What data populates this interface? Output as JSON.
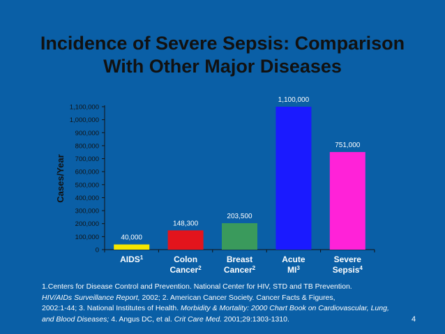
{
  "slide": {
    "title_line1": "Incidence of Severe Sepsis: Comparison",
    "title_line2": "With Other Major Diseases",
    "page_number": "4"
  },
  "colors": {
    "background": "#0a5fa6",
    "title": "#111111",
    "axis_text": "#111111",
    "label_text": "#ffffff"
  },
  "chart_data": {
    "type": "bar",
    "title": "Incidence of Severe Sepsis: Comparison With Other Major Diseases",
    "xlabel": "",
    "ylabel": "Cases/Year",
    "ylim": [
      0,
      1100000
    ],
    "ytick_values": [
      0,
      100000,
      200000,
      300000,
      400000,
      500000,
      600000,
      700000,
      800000,
      900000,
      1000000,
      1100000
    ],
    "ytick_labels": [
      "0",
      "100,000",
      "200,000",
      "300,000",
      "400,000",
      "500,000",
      "600,000",
      "700,000",
      "800,000",
      "900,000",
      "1,000,000",
      "1,100,000"
    ],
    "categories": [
      {
        "line1": "AIDS",
        "sup1": "1",
        "line2": "",
        "sup2": ""
      },
      {
        "line1": "Colon",
        "sup1": "",
        "line2": "Cancer",
        "sup2": "2"
      },
      {
        "line1": "Breast",
        "sup1": "",
        "line2": "Cancer",
        "sup2": "2"
      },
      {
        "line1": "Acute",
        "sup1": "",
        "line2": "MI",
        "sup2": "3"
      },
      {
        "line1": "Severe",
        "sup1": "",
        "line2": "Sepsis",
        "sup2": "4"
      }
    ],
    "values": [
      40000,
      148300,
      203500,
      1100000,
      751000
    ],
    "data_labels": [
      "40,000",
      "148,300",
      "203,500",
      "1,100,000",
      "751,000"
    ],
    "bar_colors": [
      "#f5e600",
      "#e3141c",
      "#3a9a5c",
      "#1a1aff",
      "#ff22d8"
    ],
    "grid": false
  },
  "references": {
    "line1": "1.Centers for Disease Control and Prevention. National Center for HIV, STD and TB Prevention.",
    "line2_italic": "HIV/AIDs Surveillance Report,",
    "line2_rest": " 2002; 2. American Cancer Society. Cancer Facts & Figures,",
    "line3_start": "2002:1-44; 3. National Institutes of Health. ",
    "line3_italic": "Morbidity & Mortality: 2000 Chart Book on Cardiovascular, Lung,",
    "line4_italic": "and Blood Diseases;",
    "line4_mid": " 4. Angus DC, et al. ",
    "line4_journal": "Crit Care Med.",
    "line4_end": " 2001;29:1303-1310."
  }
}
